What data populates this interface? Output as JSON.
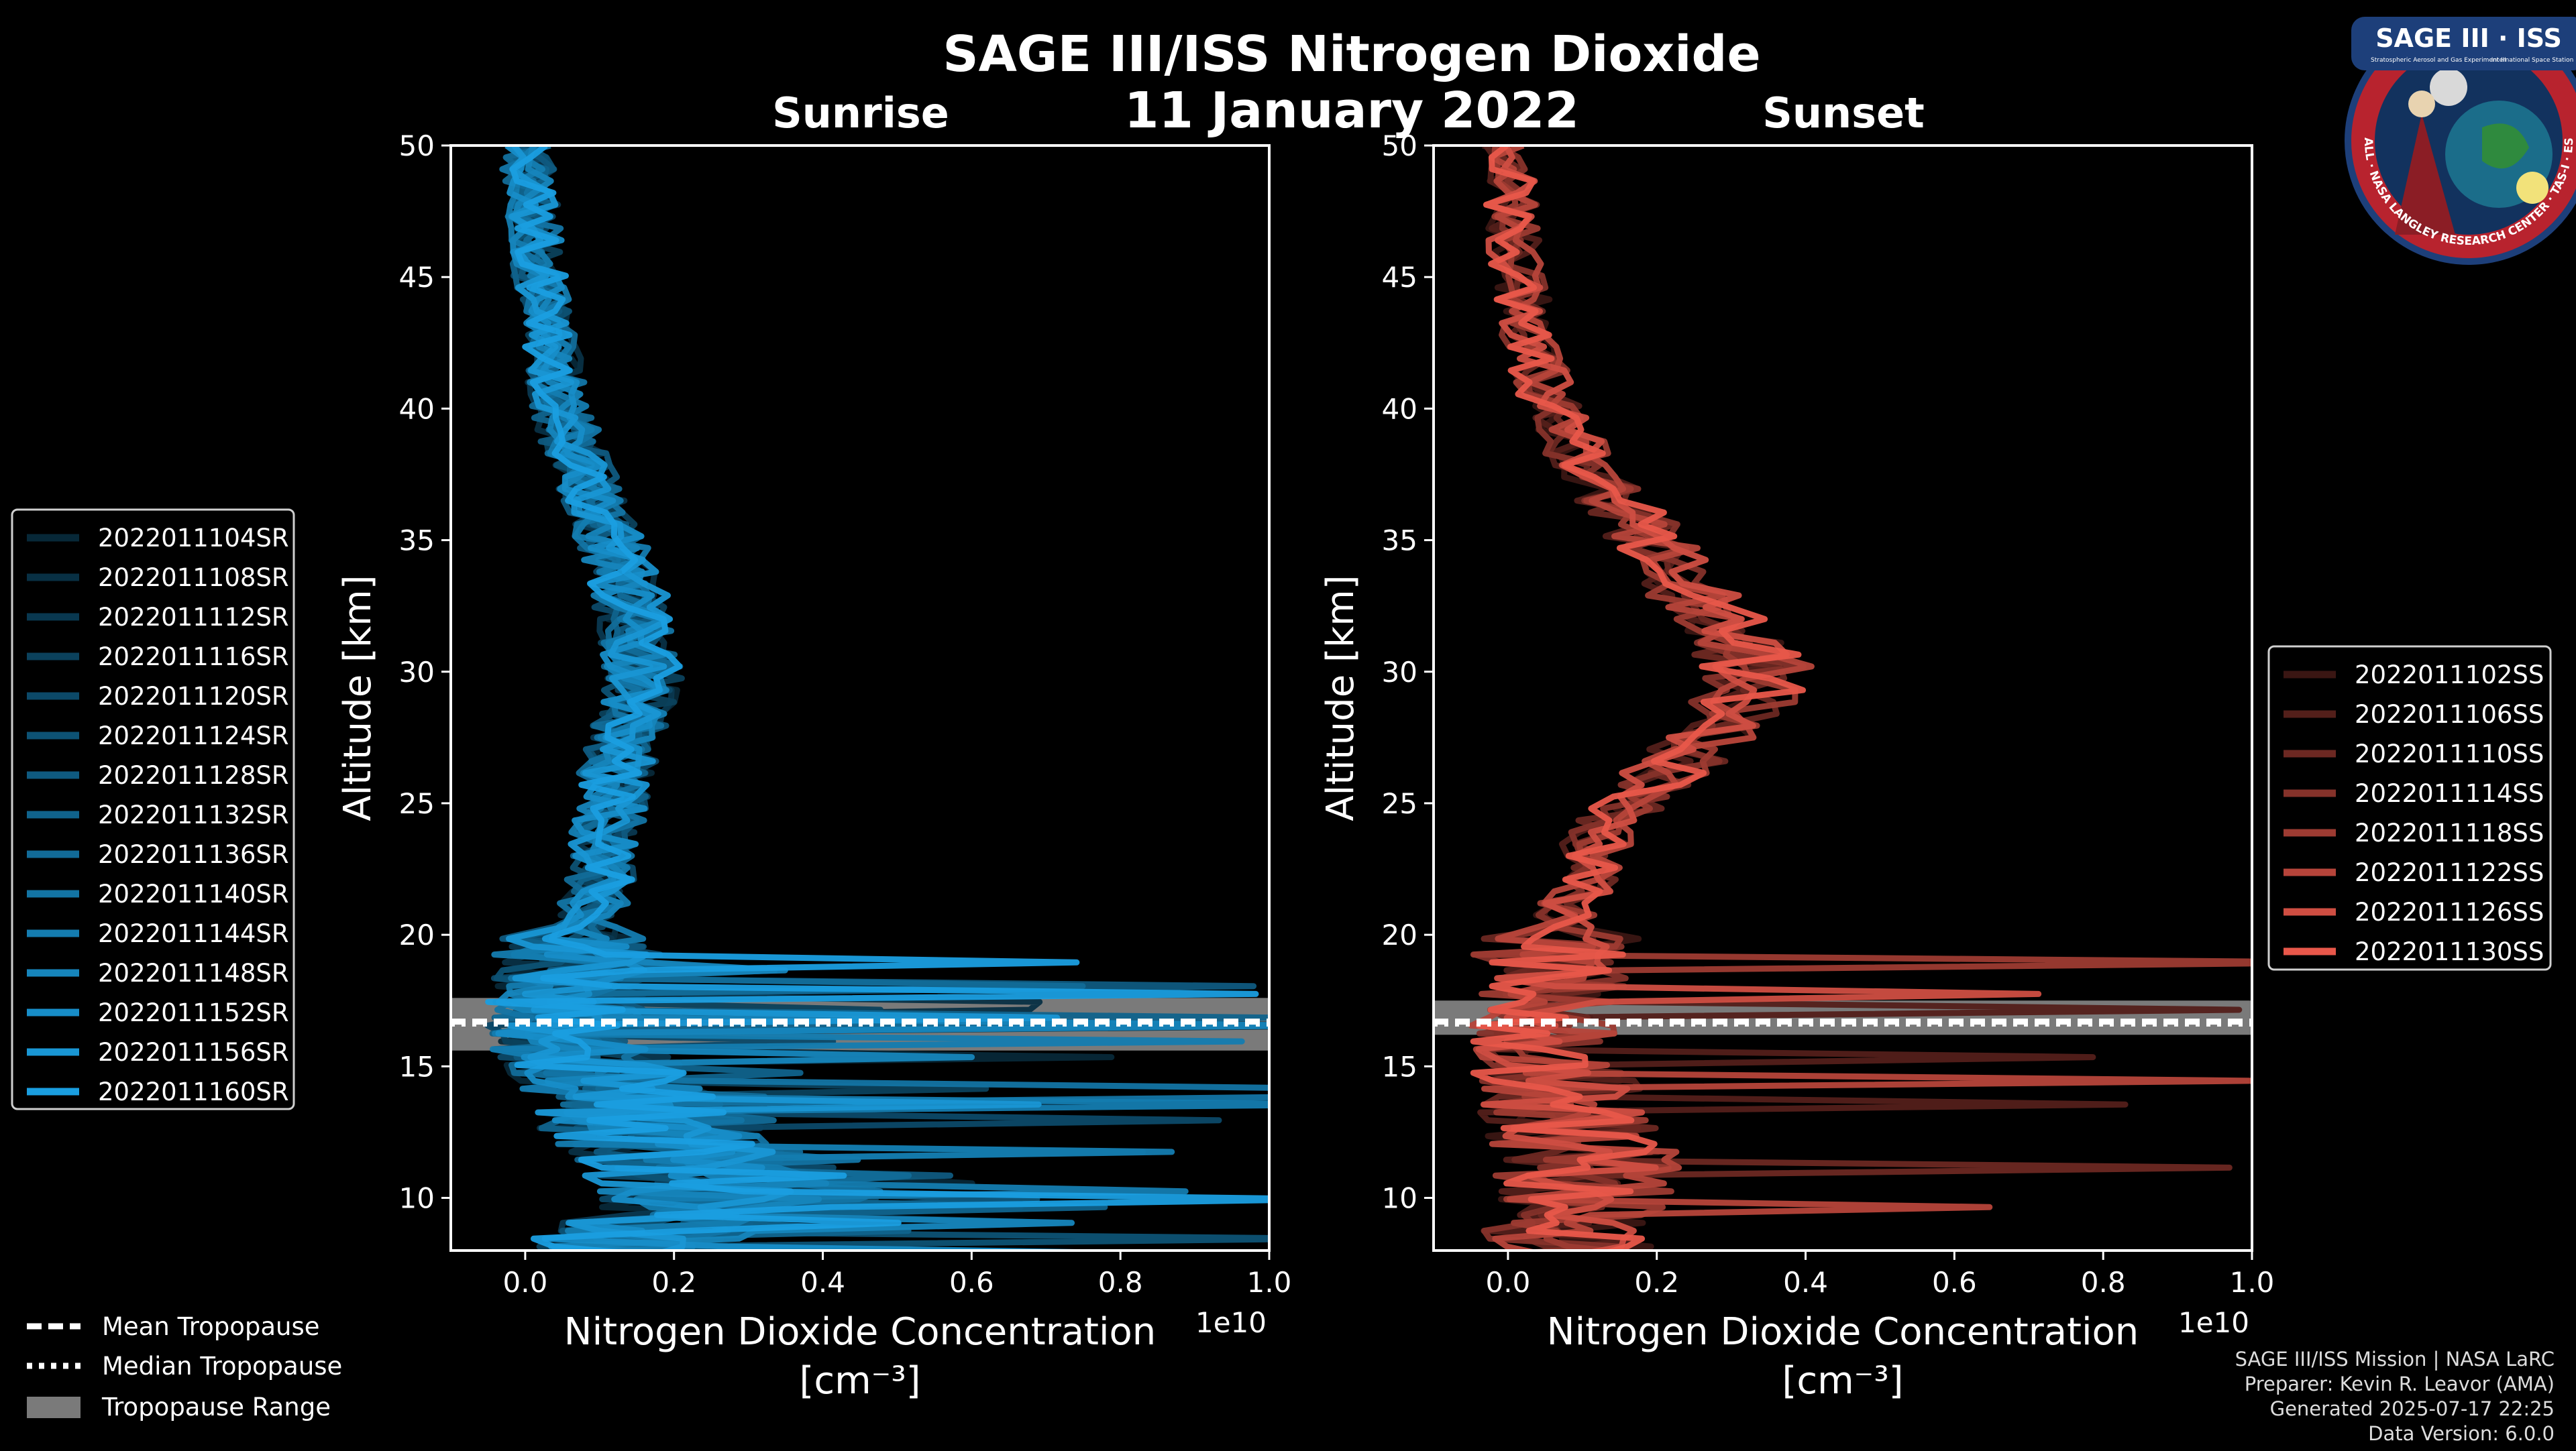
{
  "figure": {
    "title": "SAGE III/ISS Nitrogen Dioxide",
    "date": "11 January 2022",
    "logo": {
      "top_text": "SAGE III · ISS",
      "ring_text": "BALL · NASA LANGLEY RESEARCH CENTER · TAS-I · ESA",
      "sub_left": "Stratospheric Aerosol and Gas Experiment III",
      "sub_right": "International Space Station"
    },
    "footer": [
      "SAGE III/ISS Mission | NASA LaRC",
      "Preparer: Kevin R. Leavor (AMA)",
      "Generated 2025-07-17 22:25",
      "Data Version: 6.0.0"
    ],
    "shared_legend": {
      "items": [
        {
          "label": "Mean Tropopause",
          "style": "dashed"
        },
        {
          "label": "Median Tropopause",
          "style": "dotted"
        },
        {
          "label": "Tropopause Range",
          "style": "patch"
        }
      ]
    }
  },
  "chart_data": [
    {
      "type": "line",
      "title": "Sunrise",
      "xlabel": "Nitrogen Dioxide Concentration",
      "xunit": "[cm⁻³]",
      "ylabel": "Altitude [km]",
      "x_multiplier": "1e10",
      "xlim": [
        -0.1,
        1.0
      ],
      "ylim": [
        8,
        50
      ],
      "xticks": [
        "0.0",
        "0.2",
        "0.4",
        "0.6",
        "0.8",
        "1.0"
      ],
      "yticks": [
        "10",
        "15",
        "20",
        "25",
        "30",
        "35",
        "40",
        "45",
        "50"
      ],
      "color": "#1a9ee0",
      "tropopause": {
        "mean": 16.7,
        "median": 16.6,
        "range": [
          15.6,
          17.6
        ]
      },
      "legend_placement": "left",
      "series": [
        {
          "name": "2022011104SR"
        },
        {
          "name": "2022011108SR"
        },
        {
          "name": "2022011112SR"
        },
        {
          "name": "2022011116SR"
        },
        {
          "name": "2022011120SR"
        },
        {
          "name": "2022011124SR"
        },
        {
          "name": "2022011128SR"
        },
        {
          "name": "2022011132SR"
        },
        {
          "name": "2022011136SR"
        },
        {
          "name": "2022011140SR"
        },
        {
          "name": "2022011144SR"
        },
        {
          "name": "2022011148SR"
        },
        {
          "name": "2022011152SR"
        },
        {
          "name": "2022011156SR"
        },
        {
          "name": "2022011160SR"
        }
      ],
      "profile": {
        "alt": [
          50,
          48,
          46,
          44,
          42,
          40,
          38,
          36,
          34,
          32,
          30,
          28,
          26,
          24,
          22,
          20,
          18,
          17,
          16,
          15,
          14,
          13,
          12,
          11,
          10,
          9,
          8.5
        ],
        "value": [
          0.0,
          0.01,
          0.015,
          0.025,
          0.035,
          0.05,
          0.07,
          0.1,
          0.13,
          0.15,
          0.16,
          0.14,
          0.12,
          0.11,
          0.1,
          0.08,
          0.06,
          0.05,
          0.06,
          0.09,
          0.12,
          0.15,
          0.2,
          0.25,
          0.3,
          0.2,
          0.15
        ]
      }
    },
    {
      "type": "line",
      "title": "Sunset",
      "xlabel": "Nitrogen Dioxide Concentration",
      "xunit": "[cm⁻³]",
      "ylabel": "Altitude [km]",
      "x_multiplier": "1e10",
      "xlim": [
        -0.1,
        1.0
      ],
      "ylim": [
        8,
        50
      ],
      "xticks": [
        "0.0",
        "0.2",
        "0.4",
        "0.6",
        "0.8",
        "1.0"
      ],
      "yticks": [
        "10",
        "15",
        "20",
        "25",
        "30",
        "35",
        "40",
        "45",
        "50"
      ],
      "color": "#e8574a",
      "tropopause": {
        "mean": 16.7,
        "median": 16.6,
        "range": [
          16.2,
          17.5
        ]
      },
      "legend_placement": "right",
      "series": [
        {
          "name": "2022011102SS"
        },
        {
          "name": "2022011106SS"
        },
        {
          "name": "2022011110SS"
        },
        {
          "name": "2022011114SS"
        },
        {
          "name": "2022011118SS"
        },
        {
          "name": "2022011122SS"
        },
        {
          "name": "2022011126SS"
        },
        {
          "name": "2022011130SS"
        }
      ],
      "profile": {
        "alt": [
          50,
          48,
          46,
          44,
          42,
          40,
          38,
          36,
          34,
          32,
          30,
          28,
          26,
          24,
          22,
          20,
          18,
          17,
          16,
          15,
          14,
          13,
          12,
          11,
          10,
          9
        ],
        "value": [
          0.0,
          0.005,
          0.01,
          0.02,
          0.035,
          0.06,
          0.1,
          0.16,
          0.22,
          0.28,
          0.34,
          0.3,
          0.2,
          0.13,
          0.1,
          0.07,
          0.05,
          0.04,
          0.04,
          0.05,
          0.07,
          0.08,
          0.1,
          0.11,
          0.1,
          0.08
        ]
      }
    }
  ]
}
